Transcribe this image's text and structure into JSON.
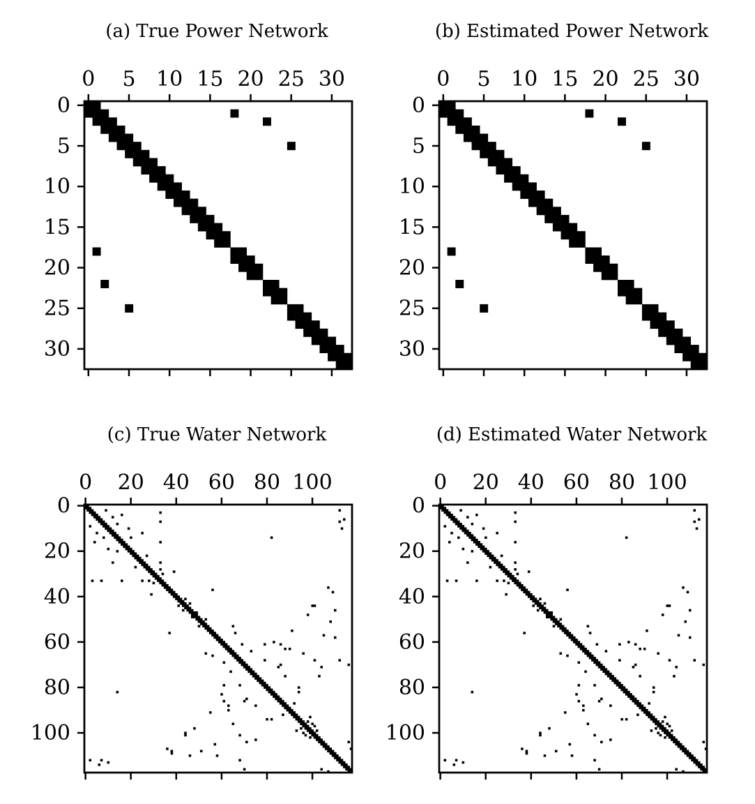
{
  "chart_data": [
    {
      "type": "heatmap",
      "title": "(a) True Power Network",
      "size": 33,
      "tick_values": [
        0,
        5,
        10,
        15,
        20,
        25,
        30
      ],
      "tick_labels": [
        "0",
        "5",
        "10",
        "15",
        "20",
        "25",
        "30"
      ],
      "x_ticks_position": "top",
      "colormap": "binary",
      "diagonal_band": {
        "width": 1,
        "skip": [
          [
            17,
            18
          ],
          [
            21,
            22
          ],
          [
            24,
            25
          ]
        ]
      },
      "cells": [
        [
          1,
          18
        ],
        [
          18,
          1
        ],
        [
          2,
          22
        ],
        [
          22,
          2
        ],
        [
          5,
          25
        ],
        [
          25,
          5
        ]
      ]
    },
    {
      "type": "heatmap",
      "title": "(b) Estimated Power Network",
      "size": 33,
      "tick_values": [
        0,
        5,
        10,
        15,
        20,
        25,
        30
      ],
      "tick_labels": [
        "0",
        "5",
        "10",
        "15",
        "20",
        "25",
        "30"
      ],
      "x_ticks_position": "top",
      "colormap": "binary",
      "diagonal_band": {
        "width": 1,
        "skip": [
          [
            17,
            18
          ],
          [
            21,
            22
          ],
          [
            24,
            25
          ]
        ]
      },
      "cells": [
        [
          1,
          18
        ],
        [
          18,
          1
        ],
        [
          2,
          22
        ],
        [
          22,
          2
        ],
        [
          5,
          25
        ],
        [
          25,
          5
        ]
      ]
    },
    {
      "type": "heatmap",
      "title": "(c) True Water Network",
      "size": 118,
      "tick_values": [
        0,
        20,
        40,
        60,
        80,
        100
      ],
      "tick_labels": [
        "0",
        "20",
        "40",
        "60",
        "80",
        "100"
      ],
      "x_ticks_position": "top",
      "colormap": "binary",
      "diagonal_band": {
        "width": 1,
        "skip": []
      },
      "cells": [
        [
          2,
          9
        ],
        [
          9,
          2
        ],
        [
          5,
          12
        ],
        [
          12,
          5
        ],
        [
          4,
          16
        ],
        [
          16,
          4
        ],
        [
          8,
          14
        ],
        [
          14,
          8
        ],
        [
          10,
          19
        ],
        [
          19,
          10
        ],
        [
          14,
          20
        ],
        [
          20,
          14
        ],
        [
          12,
          25
        ],
        [
          25,
          12
        ],
        [
          22,
          27
        ],
        [
          27,
          22
        ],
        [
          25,
          33
        ],
        [
          33,
          25
        ],
        [
          28,
          33
        ],
        [
          33,
          28
        ],
        [
          30,
          34
        ],
        [
          34,
          30
        ],
        [
          16,
          33
        ],
        [
          33,
          16
        ],
        [
          3,
          33
        ],
        [
          33,
          3
        ],
        [
          2,
          112
        ],
        [
          112,
          2
        ],
        [
          6,
          114
        ],
        [
          114,
          6
        ],
        [
          14,
          82
        ],
        [
          82,
          14
        ],
        [
          7,
          33
        ],
        [
          33,
          7
        ],
        [
          7,
          112
        ],
        [
          112,
          7
        ],
        [
          10,
          113
        ],
        [
          113,
          10
        ],
        [
          29,
          39
        ],
        [
          39,
          29
        ],
        [
          37,
          56
        ],
        [
          56,
          37
        ],
        [
          41,
          44
        ],
        [
          44,
          41
        ],
        [
          43,
          46
        ],
        [
          46,
          43
        ],
        [
          47,
          49
        ],
        [
          49,
          47
        ],
        [
          50,
          53
        ],
        [
          53,
          50
        ],
        [
          53,
          65
        ],
        [
          65,
          53
        ],
        [
          56,
          66
        ],
        [
          66,
          56
        ],
        [
          61,
          69
        ],
        [
          69,
          61
        ],
        [
          64,
          73
        ],
        [
          73,
          64
        ],
        [
          68,
          79
        ],
        [
          79,
          68
        ],
        [
          70,
          86
        ],
        [
          86,
          70
        ],
        [
          75,
          88
        ],
        [
          88,
          75
        ],
        [
          80,
          94
        ],
        [
          94,
          80
        ],
        [
          87,
          92
        ],
        [
          92,
          87
        ],
        [
          93,
          99
        ],
        [
          99,
          93
        ],
        [
          95,
          98
        ],
        [
          98,
          95
        ],
        [
          36,
          107
        ],
        [
          107,
          36
        ],
        [
          38,
          109
        ],
        [
          109,
          38
        ],
        [
          44,
          100
        ],
        [
          100,
          44
        ],
        [
          46,
          110
        ],
        [
          110,
          46
        ],
        [
          48,
          98
        ],
        [
          98,
          48
        ],
        [
          51,
          108
        ],
        [
          108,
          51
        ],
        [
          57,
          105
        ],
        [
          105,
          57
        ],
        [
          60,
          83
        ],
        [
          83,
          60
        ],
        [
          61,
          86
        ],
        [
          86,
          61
        ],
        [
          63,
          90
        ],
        [
          90,
          63
        ],
        [
          65,
          96
        ],
        [
          96,
          65
        ],
        [
          68,
          101
        ],
        [
          101,
          68
        ],
        [
          70,
          116
        ],
        [
          116,
          70
        ],
        [
          75,
          103
        ],
        [
          103,
          75
        ],
        [
          79,
          61
        ],
        [
          61,
          79
        ],
        [
          85,
          71
        ],
        [
          71,
          85
        ],
        [
          88,
          63
        ],
        [
          63,
          88
        ],
        [
          91,
          55
        ],
        [
          55,
          91
        ],
        [
          94,
          82
        ],
        [
          82,
          94
        ],
        [
          101,
          44
        ],
        [
          44,
          101
        ],
        [
          104,
          71
        ],
        [
          71,
          104
        ],
        [
          107,
          36
        ],
        [
          108,
          38
        ],
        [
          110,
          58
        ],
        [
          58,
          110
        ],
        [
          112,
          68
        ],
        [
          68,
          112
        ],
        [
          116,
          104
        ],
        [
          104,
          116
        ],
        [
          117,
          107
        ],
        [
          107,
          117
        ],
        [
          99,
          102
        ],
        [
          102,
          99
        ],
        [
          96,
          100
        ],
        [
          100,
          96
        ],
        [
          97,
          101
        ],
        [
          101,
          97
        ]
      ]
    },
    {
      "type": "heatmap",
      "title": "(d) Estimated Water Network",
      "size": 118,
      "tick_values": [
        0,
        20,
        40,
        60,
        80,
        100
      ],
      "tick_labels": [
        "0",
        "20",
        "40",
        "60",
        "80",
        "100"
      ],
      "x_ticks_position": "top",
      "colormap": "binary",
      "diagonal_band": {
        "width": 1,
        "skip": []
      },
      "cells": [
        [
          2,
          9
        ],
        [
          9,
          2
        ],
        [
          5,
          12
        ],
        [
          12,
          5
        ],
        [
          4,
          16
        ],
        [
          16,
          4
        ],
        [
          8,
          14
        ],
        [
          14,
          8
        ],
        [
          10,
          19
        ],
        [
          19,
          10
        ],
        [
          14,
          20
        ],
        [
          20,
          14
        ],
        [
          12,
          25
        ],
        [
          25,
          12
        ],
        [
          22,
          27
        ],
        [
          27,
          22
        ],
        [
          25,
          33
        ],
        [
          33,
          25
        ],
        [
          28,
          33
        ],
        [
          33,
          28
        ],
        [
          30,
          34
        ],
        [
          34,
          30
        ],
        [
          16,
          33
        ],
        [
          33,
          16
        ],
        [
          3,
          33
        ],
        [
          33,
          3
        ],
        [
          2,
          112
        ],
        [
          112,
          2
        ],
        [
          6,
          114
        ],
        [
          114,
          6
        ],
        [
          14,
          82
        ],
        [
          82,
          14
        ],
        [
          7,
          33
        ],
        [
          33,
          7
        ],
        [
          7,
          112
        ],
        [
          112,
          7
        ],
        [
          10,
          113
        ],
        [
          113,
          10
        ],
        [
          29,
          39
        ],
        [
          39,
          29
        ],
        [
          37,
          56
        ],
        [
          56,
          37
        ],
        [
          41,
          44
        ],
        [
          44,
          41
        ],
        [
          43,
          46
        ],
        [
          46,
          43
        ],
        [
          47,
          49
        ],
        [
          49,
          47
        ],
        [
          50,
          53
        ],
        [
          53,
          50
        ],
        [
          53,
          65
        ],
        [
          65,
          53
        ],
        [
          56,
          66
        ],
        [
          66,
          56
        ],
        [
          61,
          69
        ],
        [
          69,
          61
        ],
        [
          64,
          73
        ],
        [
          73,
          64
        ],
        [
          68,
          79
        ],
        [
          79,
          68
        ],
        [
          70,
          86
        ],
        [
          86,
          70
        ],
        [
          75,
          88
        ],
        [
          88,
          75
        ],
        [
          80,
          94
        ],
        [
          94,
          80
        ],
        [
          87,
          92
        ],
        [
          92,
          87
        ],
        [
          93,
          99
        ],
        [
          99,
          93
        ],
        [
          95,
          98
        ],
        [
          98,
          95
        ],
        [
          36,
          107
        ],
        [
          107,
          36
        ],
        [
          38,
          109
        ],
        [
          109,
          38
        ],
        [
          44,
          100
        ],
        [
          100,
          44
        ],
        [
          46,
          110
        ],
        [
          110,
          46
        ],
        [
          48,
          98
        ],
        [
          98,
          48
        ],
        [
          51,
          108
        ],
        [
          108,
          51
        ],
        [
          57,
          105
        ],
        [
          105,
          57
        ],
        [
          60,
          83
        ],
        [
          83,
          60
        ],
        [
          61,
          86
        ],
        [
          86,
          61
        ],
        [
          63,
          90
        ],
        [
          90,
          63
        ],
        [
          65,
          96
        ],
        [
          96,
          65
        ],
        [
          68,
          101
        ],
        [
          101,
          68
        ],
        [
          70,
          116
        ],
        [
          116,
          70
        ],
        [
          75,
          103
        ],
        [
          103,
          75
        ],
        [
          79,
          61
        ],
        [
          61,
          79
        ],
        [
          85,
          71
        ],
        [
          71,
          85
        ],
        [
          88,
          63
        ],
        [
          63,
          88
        ],
        [
          91,
          55
        ],
        [
          55,
          91
        ],
        [
          94,
          82
        ],
        [
          82,
          94
        ],
        [
          101,
          44
        ],
        [
          44,
          101
        ],
        [
          104,
          71
        ],
        [
          71,
          104
        ],
        [
          107,
          36
        ],
        [
          108,
          38
        ],
        [
          110,
          58
        ],
        [
          58,
          110
        ],
        [
          112,
          68
        ],
        [
          68,
          112
        ],
        [
          116,
          104
        ],
        [
          104,
          116
        ],
        [
          117,
          107
        ],
        [
          107,
          117
        ],
        [
          99,
          102
        ],
        [
          102,
          99
        ],
        [
          96,
          100
        ],
        [
          100,
          96
        ],
        [
          97,
          101
        ],
        [
          101,
          97
        ]
      ]
    }
  ]
}
